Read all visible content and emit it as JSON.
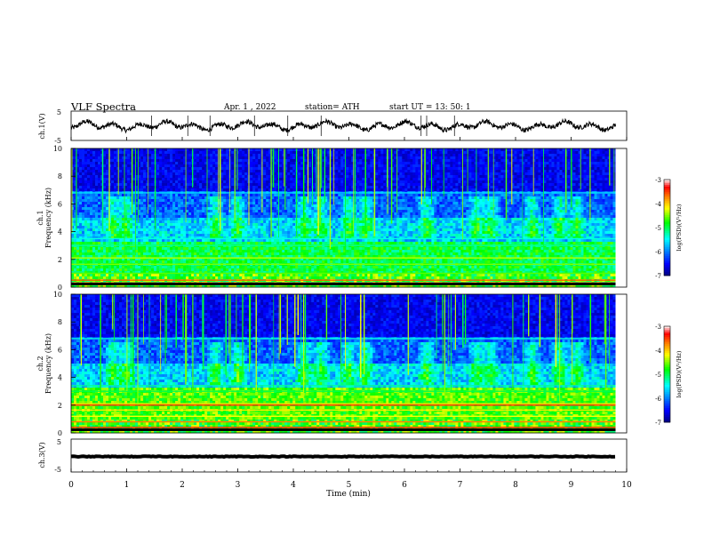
{
  "header": {
    "title": "VLF Spectra",
    "date": "Apr. 1 , 2022",
    "station": "station= ATH",
    "start": "start UT = 13: 50: 1"
  },
  "chart_data": [
    {
      "type": "line",
      "panel": "ch1-waveform",
      "ylabel": "ch.1(V)",
      "yticks": [
        "5",
        "-5"
      ],
      "ylim": [
        -5,
        5
      ],
      "description_level": "signal oscillates near 0 V",
      "line_color": "#000000"
    },
    {
      "type": "heatmap",
      "panel": "ch1-spectrogram",
      "ylabel_line1": "ch.1",
      "ylabel_line2": "Frequency (kHz)",
      "yticks": [
        "0",
        "2",
        "4",
        "6",
        "8",
        "10"
      ],
      "ylim": [
        0,
        10
      ],
      "colorbar": {
        "label": "log(PSD)(V²/Hz)",
        "ticks": [
          "-3",
          "-4",
          "-5",
          "-6",
          "-7"
        ],
        "range": [
          -7,
          -3
        ]
      }
    },
    {
      "type": "heatmap",
      "panel": "ch2-spectrogram",
      "ylabel_line1": "ch.2",
      "ylabel_line2": "Frequency (kHz)",
      "yticks": [
        "0",
        "2",
        "4",
        "6",
        "8",
        "10"
      ],
      "ylim": [
        0,
        10
      ],
      "colorbar": {
        "label": "log(PSD)(V²/Hz)",
        "ticks": [
          "-3",
          "-4",
          "-5",
          "-6",
          "-7"
        ],
        "range": [
          -7,
          -3
        ]
      }
    },
    {
      "type": "line",
      "panel": "ch3-waveform",
      "ylabel": "ch.3(V)",
      "yticks": [
        "5",
        "-5"
      ],
      "ylim": [
        -5,
        5
      ],
      "line_color": "#000000"
    }
  ],
  "x_axis": {
    "xlabel": "Time (min)",
    "xticks": [
      "0",
      "1",
      "2",
      "3",
      "4",
      "5",
      "6",
      "7",
      "8",
      "9",
      "10"
    ],
    "xlim": [
      0,
      10
    ],
    "data_end_min": 9.8
  },
  "colormap": [
    "#000080",
    "#0000ff",
    "#00ffff",
    "#00ff00",
    "#ffff00",
    "#ff8000",
    "#ff0000",
    "#ffffff"
  ]
}
